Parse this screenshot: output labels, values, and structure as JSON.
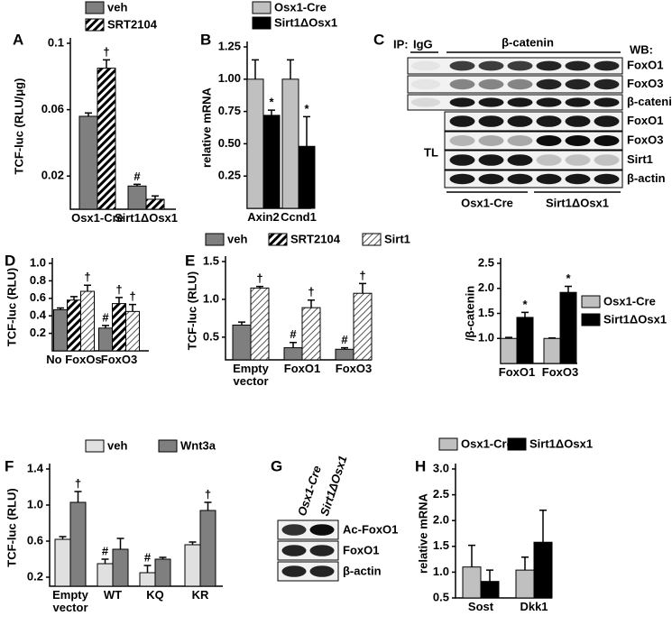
{
  "chart_data": [
    {
      "type": "bar",
      "label": "A",
      "ylabel": "TCF-luc (RLU/μg)",
      "categories": [
        "Osx1-Cre",
        "Sirt1ΔOsx1"
      ],
      "series": [
        {
          "name": "veh",
          "color": "#7f7f7f",
          "values": [
            0.056,
            0.014
          ],
          "errors": [
            0.002,
            0.001
          ],
          "annotations": [
            null,
            "#"
          ]
        },
        {
          "name": "SRT2104",
          "color": "#000000",
          "pattern": "hatch-dense",
          "values": [
            0.085,
            0.006
          ],
          "errors": [
            0.005,
            0.002
          ],
          "annotations": [
            "†",
            null
          ]
        }
      ],
      "ylim": [
        0,
        0.1
      ],
      "yticks": [
        0.02,
        0.06,
        0.1
      ]
    },
    {
      "type": "bar",
      "label": "B",
      "ylabel": "relative mRNA",
      "categories": [
        "Axin2",
        "Ccnd1"
      ],
      "series": [
        {
          "name": "Osx1-Cre",
          "color": "#c0c0c0",
          "values": [
            1.0,
            1.0
          ],
          "errors": [
            0.15,
            0.15
          ]
        },
        {
          "name": "Sirt1ΔOsx1",
          "color": "#000000",
          "values": [
            0.72,
            0.48
          ],
          "errors": [
            0.04,
            0.23
          ],
          "annotations": [
            "*",
            "*"
          ]
        }
      ],
      "ylim": [
        0,
        1.25
      ],
      "yticks": [
        0.25,
        {
          "value": 0.5,
          "label": "0.50"
        },
        0.75,
        {
          "value": 1,
          "label": "1.00"
        },
        1.25
      ]
    },
    {
      "type": "bar",
      "label": "D",
      "ylabel": "TCF-luc (RLU)",
      "categories": [
        "No FoxOs",
        "FoxO3"
      ],
      "series": [
        {
          "name": "veh",
          "color": "#7f7f7f",
          "values": [
            0.47,
            0.26
          ],
          "errors": [
            0.02,
            0.03
          ],
          "annotations": [
            null,
            "#"
          ]
        },
        {
          "name": "SRT2104",
          "color": "#000000",
          "pattern": "hatch-dense",
          "values": [
            0.58,
            0.54
          ],
          "errors": [
            0.04,
            0.07
          ],
          "annotations": [
            null,
            "†"
          ]
        },
        {
          "name": "Sirt1",
          "color": "#000000",
          "pattern": "hatch-light",
          "values": [
            0.68,
            0.45
          ],
          "errors": [
            0.07,
            0.08
          ],
          "annotations": [
            "†",
            "†"
          ]
        }
      ],
      "ylim": [
        0,
        1.0
      ],
      "yticks": [
        0.2,
        0.4,
        0.6,
        0.8,
        {
          "value": 1,
          "label": "1.0"
        }
      ]
    },
    {
      "type": "bar",
      "label": "E",
      "ylabel": "TCF-luc (RLU)",
      "categories": [
        "Empty vector",
        "FoxO1",
        "FoxO3"
      ],
      "series": [
        {
          "color": "#7f7f7f",
          "values": [
            0.66,
            0.36,
            0.34
          ],
          "errors": [
            0.04,
            0.07,
            0.02
          ],
          "annotations": [
            null,
            "#",
            "#"
          ]
        },
        {
          "color": "#000000",
          "pattern": "hatch-light",
          "values": [
            1.15,
            0.89,
            1.08
          ],
          "errors": [
            0.02,
            0.1,
            0.13
          ],
          "annotations": [
            "†",
            "†",
            "†"
          ]
        }
      ],
      "ylim": [
        0.2,
        1.5
      ],
      "yticks": [
        0.5,
        {
          "value": 1,
          "label": "1.0"
        },
        1.5
      ]
    },
    {
      "type": "bar",
      "ylabel": "/β-catenin",
      "categories": [
        "FoxO1",
        "FoxO3"
      ],
      "series": [
        {
          "name": "Osx1-Cre",
          "color": "#c0c0c0",
          "values": [
            1.0,
            1.0
          ],
          "errors": [
            0.02,
            0.01
          ]
        },
        {
          "name": "Sirt1ΔOsx1",
          "color": "#000000",
          "values": [
            1.42,
            1.92
          ],
          "errors": [
            0.1,
            0.12
          ],
          "annotations": [
            "*",
            "*"
          ]
        }
      ],
      "ylim": [
        0.5,
        2.5
      ],
      "yticks": [
        {
          "value": 1,
          "label": "1.0"
        },
        1.5,
        {
          "value": 2,
          "label": "2.0"
        },
        2.5
      ]
    },
    {
      "type": "bar",
      "label": "F",
      "ylabel": "TCF-luc (RLU)",
      "categories": [
        "Empty vector",
        "WT",
        "KQ",
        "KR"
      ],
      "series": [
        {
          "name": "veh",
          "color": "#e0e0e0",
          "values": [
            0.62,
            0.35,
            0.25,
            0.56
          ],
          "errors": [
            0.03,
            0.05,
            0.08,
            0.03
          ],
          "annotations": [
            null,
            "#",
            "#",
            null
          ]
        },
        {
          "name": "Wnt3a",
          "color": "#7f7f7f",
          "values": [
            1.03,
            0.51,
            0.4,
            0.94
          ],
          "errors": [
            0.12,
            0.12,
            0.02,
            0.09
          ],
          "annotations": [
            "†",
            null,
            null,
            "†"
          ]
        }
      ],
      "ylim": [
        0.1,
        1.4
      ],
      "yticks": [
        0.2,
        0.6,
        {
          "value": 1,
          "label": "1.0"
        },
        1.4
      ]
    },
    {
      "type": "bar",
      "label": "H",
      "ylabel": "relative mRNA",
      "categories": [
        "Sost",
        "Dkk1"
      ],
      "series": [
        {
          "name": "Osx1-Cre",
          "color": "#c0c0c0",
          "values": [
            1.1,
            1.04
          ],
          "errors": [
            0.42,
            0.25
          ]
        },
        {
          "name": "Sirt1ΔOsx1",
          "color": "#000000",
          "values": [
            0.82,
            1.58
          ],
          "errors": [
            0.22,
            0.62
          ]
        }
      ],
      "ylim": [
        0.5,
        3.0
      ],
      "yticks": [
        0.5,
        {
          "value": 1,
          "label": "1.0"
        },
        1.5,
        {
          "value": 2,
          "label": "2.0"
        },
        2.5,
        {
          "value": 3,
          "label": "3.0"
        }
      ]
    }
  ],
  "blots": [
    {
      "label": "C",
      "ip": "IP:",
      "igg": "IgG",
      "antibody": "β-catenin",
      "wb": "WB:",
      "ip_rows": [
        "FoxO1",
        "FoxO3",
        "β-catenin"
      ],
      "tl": "TL",
      "tl_rows": [
        "FoxO1",
        "FoxO3",
        "Sirt1",
        "β-actin"
      ],
      "groups": [
        "Osx1-Cre",
        "Sirt1ΔOsx1"
      ]
    },
    {
      "label": "G",
      "groups": [
        "Osx1-Cre",
        "Sirt1ΔOsx1"
      ],
      "rows": [
        "Ac-FoxO1",
        "FoxO1",
        "β-actin"
      ]
    }
  ]
}
